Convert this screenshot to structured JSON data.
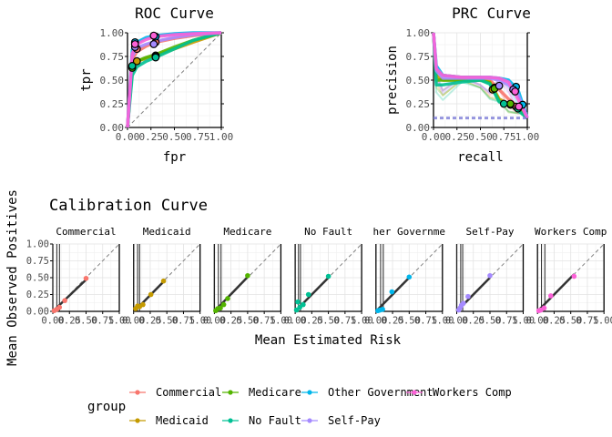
{
  "group_colors": {
    "Commercial": "#F8766D",
    "Medicaid": "#C49A00",
    "Medicare": "#53B400",
    "No Fault": "#00C094",
    "Other Government": "#00B6EB",
    "Self-Pay": "#A58AFF",
    "Workers Comp": "#FB61D7"
  },
  "legend": {
    "title": "group",
    "items": [
      {
        "label": "Commercial",
        "color": "#F8766D"
      },
      {
        "label": "Medicaid",
        "color": "#C49A00"
      },
      {
        "label": "Medicare",
        "color": "#53B400"
      },
      {
        "label": "No Fault",
        "color": "#00C094"
      },
      {
        "label": "Other Government",
        "color": "#00B6EB"
      },
      {
        "label": "Self-Pay",
        "color": "#A58AFF"
      },
      {
        "label": "Workers Comp",
        "color": "#FB61D7"
      }
    ]
  },
  "chart_data": [
    {
      "type": "line",
      "title": "ROC Curve",
      "xlabel": "fpr",
      "ylabel": "tpr",
      "xlim": [
        0,
        1
      ],
      "ylim": [
        0,
        1
      ],
      "ticks": [
        "0.00",
        "0.25",
        "0.50",
        "0.75",
        "1.00"
      ],
      "tick_values": [
        0,
        0.25,
        0.5,
        0.75,
        1
      ],
      "grid": true,
      "reference_line": [
        [
          0,
          0
        ],
        [
          1,
          1
        ]
      ],
      "series": [
        {
          "name": "Commercial",
          "x": [
            0,
            0.05,
            0.1,
            0.2,
            0.3,
            0.5,
            0.7,
            1
          ],
          "y": [
            0,
            0.72,
            0.8,
            0.86,
            0.9,
            0.94,
            0.97,
            1
          ],
          "threshold_points": [
            [
              0.1,
              0.83
            ],
            [
              0.3,
              0.9
            ]
          ]
        },
        {
          "name": "Medicaid",
          "x": [
            0,
            0.05,
            0.1,
            0.2,
            0.3,
            0.5,
            0.7,
            1
          ],
          "y": [
            0,
            0.62,
            0.7,
            0.73,
            0.76,
            0.83,
            0.9,
            1
          ],
          "threshold_points": [
            [
              0.1,
              0.7
            ],
            [
              0.3,
              0.76
            ]
          ]
        },
        {
          "name": "Medicare",
          "x": [
            0,
            0.05,
            0.1,
            0.2,
            0.3,
            0.5,
            0.7,
            1
          ],
          "y": [
            0,
            0.65,
            0.7,
            0.74,
            0.77,
            0.85,
            0.92,
            1
          ],
          "threshold_points": [
            [
              0.05,
              0.63
            ],
            [
              0.3,
              0.75
            ]
          ]
        },
        {
          "name": "No Fault",
          "x": [
            0,
            0.05,
            0.1,
            0.2,
            0.3,
            0.5,
            0.7,
            1
          ],
          "y": [
            0,
            0.55,
            0.64,
            0.7,
            0.74,
            0.83,
            0.92,
            1
          ],
          "threshold_points": [
            [
              0.05,
              0.65
            ],
            [
              0.3,
              0.74
            ]
          ]
        },
        {
          "name": "Other Government",
          "x": [
            0,
            0.05,
            0.1,
            0.2,
            0.3,
            0.5,
            0.7,
            1
          ],
          "y": [
            0,
            0.82,
            0.9,
            0.95,
            0.97,
            0.99,
            1,
            1
          ],
          "threshold_points": [
            [
              0.08,
              0.9
            ],
            [
              0.3,
              0.96
            ]
          ]
        },
        {
          "name": "Self-Pay",
          "x": [
            0,
            0.05,
            0.1,
            0.2,
            0.3,
            0.5,
            0.7,
            1
          ],
          "y": [
            0,
            0.75,
            0.84,
            0.88,
            0.91,
            0.95,
            0.98,
            1
          ],
          "threshold_points": [
            [
              0.08,
              0.85
            ],
            [
              0.28,
              0.88
            ]
          ]
        },
        {
          "name": "Workers Comp",
          "x": [
            0,
            0.05,
            0.1,
            0.2,
            0.3,
            0.5,
            0.7,
            1
          ],
          "y": [
            0,
            0.78,
            0.88,
            0.93,
            0.96,
            0.98,
            0.99,
            1
          ],
          "threshold_points": [
            [
              0.08,
              0.88
            ],
            [
              0.28,
              0.97
            ]
          ]
        }
      ]
    },
    {
      "type": "line",
      "title": "PRC Curve",
      "xlabel": "recall",
      "ylabel": "precision",
      "xlim": [
        0,
        1
      ],
      "ylim": [
        0,
        1
      ],
      "ticks": [
        "0.00",
        "0.25",
        "0.50",
        "0.75",
        "1.00"
      ],
      "tick_values": [
        0,
        0.25,
        0.5,
        0.75,
        1
      ],
      "grid": true,
      "baseline_precision": 0.1,
      "series": [
        {
          "name": "Commercial",
          "x": [
            0,
            0.03,
            0.1,
            0.3,
            0.5,
            0.6,
            0.7,
            0.8,
            0.9,
            1
          ],
          "y": [
            1,
            0.6,
            0.55,
            0.53,
            0.53,
            0.5,
            0.4,
            0.3,
            0.22,
            0.1
          ],
          "threshold_points": [
            [
              0.65,
              0.42
            ],
            [
              0.88,
              0.22
            ]
          ]
        },
        {
          "name": "Medicaid",
          "x": [
            0,
            0.03,
            0.1,
            0.3,
            0.5,
            0.6,
            0.7,
            0.8,
            0.9,
            1
          ],
          "y": [
            1,
            0.55,
            0.5,
            0.5,
            0.5,
            0.48,
            0.3,
            0.25,
            0.2,
            0.1
          ],
          "threshold_points": [
            [
              0.63,
              0.4
            ],
            [
              0.82,
              0.24
            ]
          ]
        },
        {
          "name": "Medicare",
          "x": [
            0,
            0.03,
            0.1,
            0.3,
            0.5,
            0.6,
            0.7,
            0.8,
            0.9,
            1
          ],
          "y": [
            1,
            0.5,
            0.5,
            0.5,
            0.5,
            0.47,
            0.28,
            0.24,
            0.2,
            0.1
          ],
          "threshold_points": [
            [
              0.65,
              0.41
            ],
            [
              0.82,
              0.25
            ]
          ]
        },
        {
          "name": "No Fault",
          "x": [
            0,
            0.03,
            0.1,
            0.3,
            0.5,
            0.6,
            0.7,
            0.8,
            0.9,
            1
          ],
          "y": [
            1,
            0.45,
            0.45,
            0.48,
            0.5,
            0.46,
            0.27,
            0.25,
            0.18,
            0.1
          ],
          "threshold_points": [
            [
              0.75,
              0.25
            ],
            [
              0.9,
              0.2
            ]
          ]
        },
        {
          "name": "Other Government",
          "x": [
            0,
            0.03,
            0.1,
            0.3,
            0.5,
            0.6,
            0.7,
            0.8,
            0.9,
            1
          ],
          "y": [
            1,
            0.65,
            0.55,
            0.53,
            0.53,
            0.53,
            0.52,
            0.5,
            0.4,
            0.1
          ],
          "threshold_points": [
            [
              0.88,
              0.43
            ],
            [
              0.95,
              0.24
            ]
          ]
        },
        {
          "name": "Self-Pay",
          "x": [
            0,
            0.03,
            0.1,
            0.3,
            0.5,
            0.6,
            0.7,
            0.8,
            0.9,
            1
          ],
          "y": [
            1,
            0.6,
            0.52,
            0.52,
            0.52,
            0.52,
            0.5,
            0.45,
            0.35,
            0.1
          ],
          "threshold_points": [
            [
              0.7,
              0.44
            ],
            [
              0.85,
              0.4
            ]
          ]
        },
        {
          "name": "Workers Comp",
          "x": [
            0,
            0.03,
            0.1,
            0.3,
            0.5,
            0.6,
            0.7,
            0.8,
            0.9,
            1
          ],
          "y": [
            1,
            0.62,
            0.55,
            0.53,
            0.53,
            0.53,
            0.52,
            0.48,
            0.3,
            0.1
          ],
          "threshold_points": [
            [
              0.87,
              0.38
            ],
            [
              0.91,
              0.22
            ]
          ]
        }
      ]
    },
    {
      "type": "scatter",
      "title": "Calibration Curve",
      "xlabel": "Mean Estimated Risk",
      "ylabel": "Mean Observed Positives",
      "xlim": [
        0,
        1
      ],
      "ylim": [
        0,
        1
      ],
      "ticks": [
        "0.00",
        "0.25",
        "0.50",
        "0.75",
        "1.00"
      ],
      "tick_values": [
        0,
        0.25,
        0.5,
        0.75,
        1
      ],
      "grid": true,
      "reference_line": [
        [
          0,
          0
        ],
        [
          1,
          1
        ]
      ],
      "panels": [
        {
          "name": "Commercial",
          "x": [
            0.02,
            0.06,
            0.1,
            0.18,
            0.5
          ],
          "y": [
            0.01,
            0.03,
            0.06,
            0.16,
            0.49
          ],
          "fit": [
            [
              0,
              0
            ],
            [
              0.5,
              0.47
            ]
          ],
          "threshold_x": [
            0.06,
            0.1
          ]
        },
        {
          "name": "Medicaid",
          "x": [
            0.03,
            0.06,
            0.09,
            0.14,
            0.26,
            0.45
          ],
          "y": [
            0.04,
            0.08,
            0.07,
            0.1,
            0.25,
            0.45
          ],
          "fit": [
            [
              0.03,
              0.02
            ],
            [
              0.45,
              0.44
            ]
          ],
          "threshold_x": [
            0.06,
            0.09
          ]
        },
        {
          "name": "Medicare",
          "x": [
            0.02,
            0.05,
            0.09,
            0.14,
            0.2,
            0.5
          ],
          "y": [
            0.01,
            0.04,
            0.05,
            0.1,
            0.19,
            0.53
          ],
          "fit": [
            [
              0,
              0
            ],
            [
              0.5,
              0.51
            ]
          ],
          "threshold_x": [
            0.06,
            0.1
          ]
        },
        {
          "name": "No Fault",
          "x": [
            0.02,
            0.04,
            0.07,
            0.12,
            0.2,
            0.5
          ],
          "y": [
            0.02,
            0.14,
            0.06,
            0.1,
            0.25,
            0.52
          ],
          "fit": [
            [
              0,
              0
            ],
            [
              0.5,
              0.5
            ]
          ],
          "threshold_x": [
            0.05,
            0.08
          ]
        },
        {
          "name": "Other Government",
          "x": [
            0.03,
            0.06,
            0.1,
            0.24,
            0.5
          ],
          "y": [
            0.01,
            0.02,
            0.03,
            0.29,
            0.51
          ],
          "fit": [
            [
              0,
              0
            ],
            [
              0.5,
              0.5
            ]
          ],
          "threshold_x": [
            0.07,
            0.11
          ]
        },
        {
          "name": "Self-Pay",
          "x": [
            0.03,
            0.05,
            0.07,
            0.1,
            0.17,
            0.5
          ],
          "y": [
            0.02,
            0.05,
            0.09,
            0.12,
            0.22,
            0.53
          ],
          "fit": [
            [
              0,
              0
            ],
            [
              0.5,
              0.5
            ]
          ],
          "threshold_x": [
            0.06,
            0.09
          ]
        },
        {
          "name": "Workers Comp",
          "x": [
            0.02,
            0.05,
            0.1,
            0.2,
            0.55
          ],
          "y": [
            0.01,
            0.02,
            0.05,
            0.23,
            0.52
          ],
          "fit": [
            [
              0,
              0
            ],
            [
              0.55,
              0.55
            ]
          ],
          "threshold_x": [
            0.06,
            0.11
          ]
        }
      ]
    }
  ]
}
